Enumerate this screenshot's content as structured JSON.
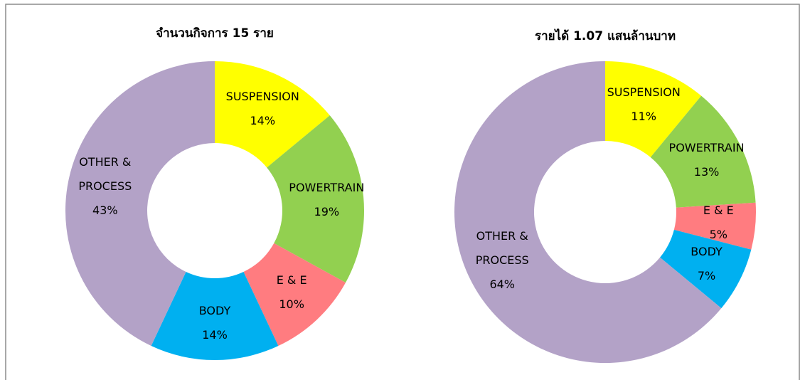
{
  "chart_data": [
    {
      "type": "donut",
      "title": "จำนวนกิจการ 15 ราย",
      "categories": [
        "SUSPENSION",
        "POWERTRAIN",
        "E & E",
        "BODY",
        "OTHER & PROCESS"
      ],
      "values": [
        14,
        19,
        10,
        14,
        43
      ],
      "value_labels": [
        "14%",
        "19%",
        "10%",
        "14%",
        "43%"
      ],
      "colors": [
        "#ffff00",
        "#92d050",
        "#ff7c80",
        "#00b0f0",
        "#b3a2c7"
      ]
    },
    {
      "type": "donut",
      "title": "รายได้ 1.07 แสนล้านบาท",
      "categories": [
        "SUSPENSION",
        "POWERTRAIN",
        "E & E",
        "BODY",
        "OTHER & PROCESS"
      ],
      "values": [
        11,
        13,
        5,
        7,
        64
      ],
      "value_labels": [
        "11%",
        "13%",
        "5%",
        "7%",
        "64%"
      ],
      "colors": [
        "#ffff00",
        "#92d050",
        "#ff7c80",
        "#00b0f0",
        "#b3a2c7"
      ]
    }
  ]
}
